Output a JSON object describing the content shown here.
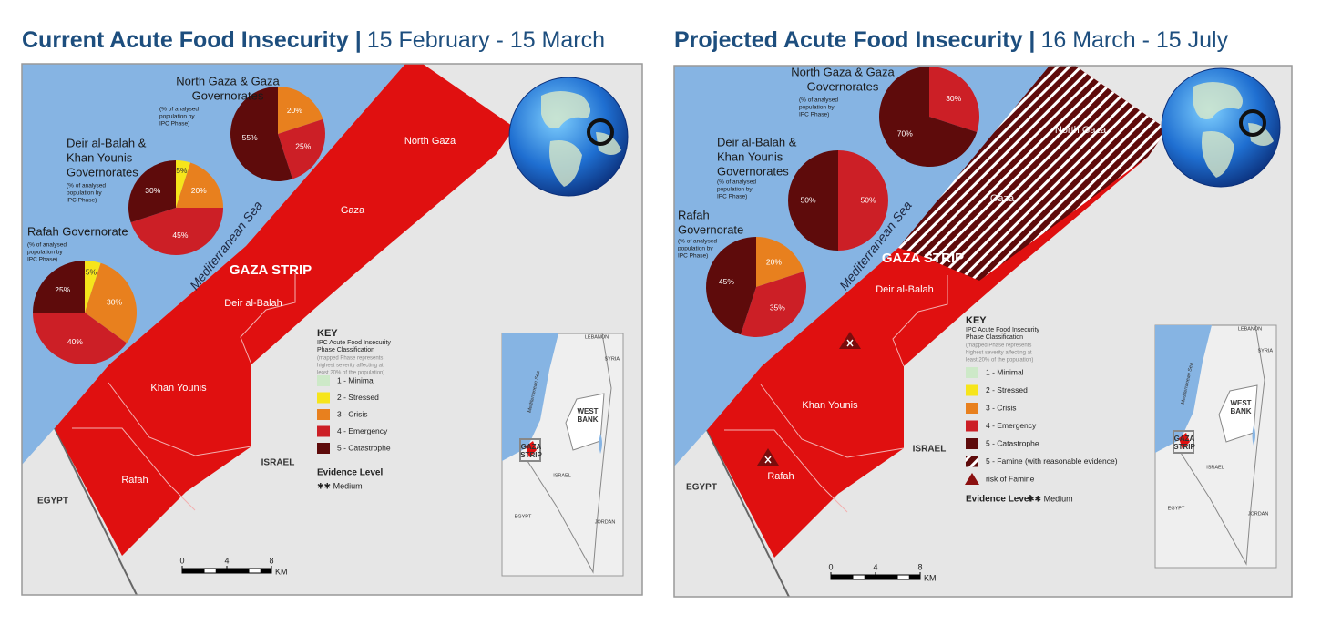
{
  "maps": [
    {
      "title": "Current Acute Food Insecurity |",
      "period": "15 February - 15 March",
      "pies": [
        {
          "type": "pie",
          "name": [
            "North Gaza & Gaza",
            "Governorates"
          ],
          "note": [
            "(% of analysed",
            "population by",
            "IPC Phase)"
          ],
          "values": [
            20,
            25,
            55
          ],
          "value_labels": [
            "20%",
            "25%",
            "55%"
          ],
          "colors": [
            "#e8801e",
            "#cc1f26",
            "#5e0b0b"
          ]
        },
        {
          "type": "pie",
          "name": [
            "Deir al-Balah &",
            "Khan Younis",
            "Governorates"
          ],
          "note": [
            "(% of analysed",
            "population by",
            "IPC Phase)"
          ],
          "values": [
            5,
            20,
            45,
            30
          ],
          "value_labels": [
            "5%",
            "20%",
            "45%",
            "30%"
          ],
          "colors": [
            "#f6e51b",
            "#e8801e",
            "#cc1f26",
            "#5e0b0b"
          ]
        },
        {
          "type": "pie",
          "name": [
            "Rafah  Governorate"
          ],
          "note": [
            "(% of analysed",
            "population by",
            "IPC Phase)"
          ],
          "values": [
            5,
            30,
            40,
            25
          ],
          "value_labels": [
            "5%",
            "30%",
            "40%",
            "25%"
          ],
          "colors": [
            "#f6e51b",
            "#e8801e",
            "#cc1f26",
            "#5e0b0b"
          ]
        }
      ],
      "places": [
        "North Gaza",
        "Gaza",
        "GAZA STRIP",
        "Deir al-Balah",
        "Khan Younis",
        "Rafah",
        "ISRAEL",
        "EGYPT",
        "Mediterranean Sea"
      ],
      "inset": [
        [
          "LEBANON"
        ],
        [
          "SYRIA"
        ],
        [
          "Mediterranean Sea"
        ],
        [
          "WEST",
          "BANK"
        ],
        [
          "GAZA",
          "STRIP"
        ],
        [
          "ISRAEL"
        ],
        [
          "EGYPT"
        ],
        [
          "JORDAN"
        ]
      ],
      "key": {
        "title": "KEY",
        "subtitle": [
          "IPC Acute Food Insecurity",
          "Phase Classification"
        ],
        "note": [
          "(mapped Phase represents",
          "highest severity affecting at",
          "least 20% of the population)"
        ],
        "entries": [
          {
            "label": "1 - Minimal",
            "color": "#cde9c8"
          },
          {
            "label": "2 - Stressed",
            "color": "#f6e51b"
          },
          {
            "label": "3 - Crisis",
            "color": "#e8801e"
          },
          {
            "label": "4 - Emergency",
            "color": "#cc1f26"
          },
          {
            "label": "5 - Catastrophe",
            "color": "#5e0b0b"
          }
        ],
        "evidence": "Evidence Level",
        "evidence_value": "✱✱ Medium"
      },
      "scale": {
        "ticks": [
          0,
          4,
          8
        ],
        "unit": "KM"
      }
    },
    {
      "title": "Projected Acute Food Insecurity |",
      "period": "16 March - 15 July",
      "pies": [
        {
          "type": "pie",
          "name": [
            "North Gaza & Gaza",
            "Governorates"
          ],
          "note": [
            "(% of analysed",
            "population by",
            "IPC Phase)"
          ],
          "values": [
            30,
            70
          ],
          "value_labels": [
            "30%",
            "70%"
          ],
          "colors": [
            "#cc1f26",
            "#5e0b0b"
          ]
        },
        {
          "type": "pie",
          "name": [
            "Deir al-Balah &",
            "Khan Younis",
            "Governorates"
          ],
          "note": [
            "(% of analysed",
            "population by",
            "IPC Phase)"
          ],
          "values": [
            50,
            50
          ],
          "value_labels": [
            "50%",
            "50%"
          ],
          "colors": [
            "#cc1f26",
            "#5e0b0b"
          ]
        },
        {
          "type": "pie",
          "name": [
            "Rafah",
            "Governorate"
          ],
          "note": [
            "(% of analysed",
            "population by",
            "IPC Phase)"
          ],
          "values": [
            20,
            35,
            45
          ],
          "value_labels": [
            "20%",
            "35%",
            "45%"
          ],
          "colors": [
            "#e8801e",
            "#cc1f26",
            "#5e0b0b"
          ]
        }
      ],
      "places": [
        "North Gaza",
        "Gaza",
        "GAZA STRIP",
        "Deir al-Balah",
        "Khan Younis",
        "Rafah",
        "ISRAEL",
        "EGYPT",
        "Mediterranean Sea"
      ],
      "inset": [
        [
          "LEBANON"
        ],
        [
          "SYRIA"
        ],
        [
          "Mediterranean Sea"
        ],
        [
          "WEST",
          "BANK"
        ],
        [
          "GAZA",
          "STRIP"
        ],
        [
          "ISRAEL"
        ],
        [
          "EGYPT"
        ],
        [
          "JORDAN"
        ]
      ],
      "key": {
        "title": "KEY",
        "subtitle": [
          "IPC Acute Food Insecurity",
          "Phase Classification"
        ],
        "note": [
          "(mapped Phase represents",
          "highest severity affecting at",
          "least 20% of the population)"
        ],
        "entries": [
          {
            "label": "1 - Minimal",
            "color": "#cde9c8"
          },
          {
            "label": "2 - Stressed",
            "color": "#f6e51b"
          },
          {
            "label": "3 - Crisis",
            "color": "#e8801e"
          },
          {
            "label": "4 - Emergency",
            "color": "#cc1f26"
          },
          {
            "label": "5 - Catastrophe",
            "color": "#5e0b0b"
          },
          {
            "label": "5 -  Famine (with reasonable evidence)",
            "color": "#5e0b0b",
            "pattern": "hatch"
          },
          {
            "label": "risk of Famine",
            "color": "#8b1010",
            "symbol": "triangle"
          }
        ],
        "evidence": "Evidence Level",
        "evidence_value": "✱✱ Medium"
      },
      "scale": {
        "ticks": [
          0,
          4,
          8
        ],
        "unit": "KM"
      }
    }
  ]
}
